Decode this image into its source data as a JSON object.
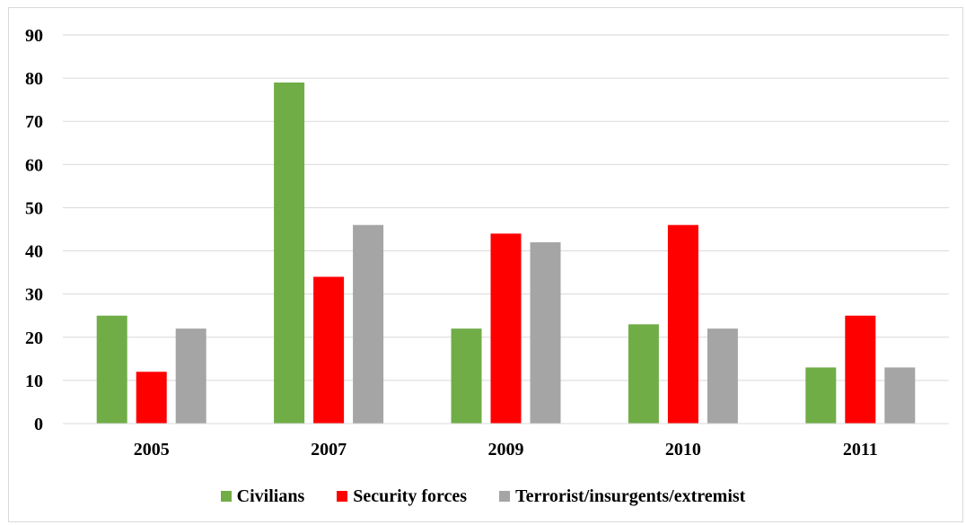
{
  "chart_data": {
    "type": "bar",
    "categories": [
      "2005",
      "2007",
      "2009",
      "2010",
      "2011"
    ],
    "series": [
      {
        "name": "Civilians",
        "color": "#70ad47",
        "values": [
          25,
          79,
          22,
          23,
          13
        ]
      },
      {
        "name": "Security forces",
        "color": "#ff0000",
        "values": [
          12,
          34,
          44,
          46,
          25
        ]
      },
      {
        "name": "Terrorist/insurgents/extremist",
        "color": "#a5a5a5",
        "values": [
          22,
          46,
          42,
          22,
          13
        ]
      }
    ],
    "ylim": [
      0,
      90
    ],
    "yticks": [
      "0",
      "10",
      "20",
      "30",
      "40",
      "50",
      "60",
      "70",
      "80",
      "90"
    ],
    "grid": true,
    "legend_position": "bottom"
  }
}
